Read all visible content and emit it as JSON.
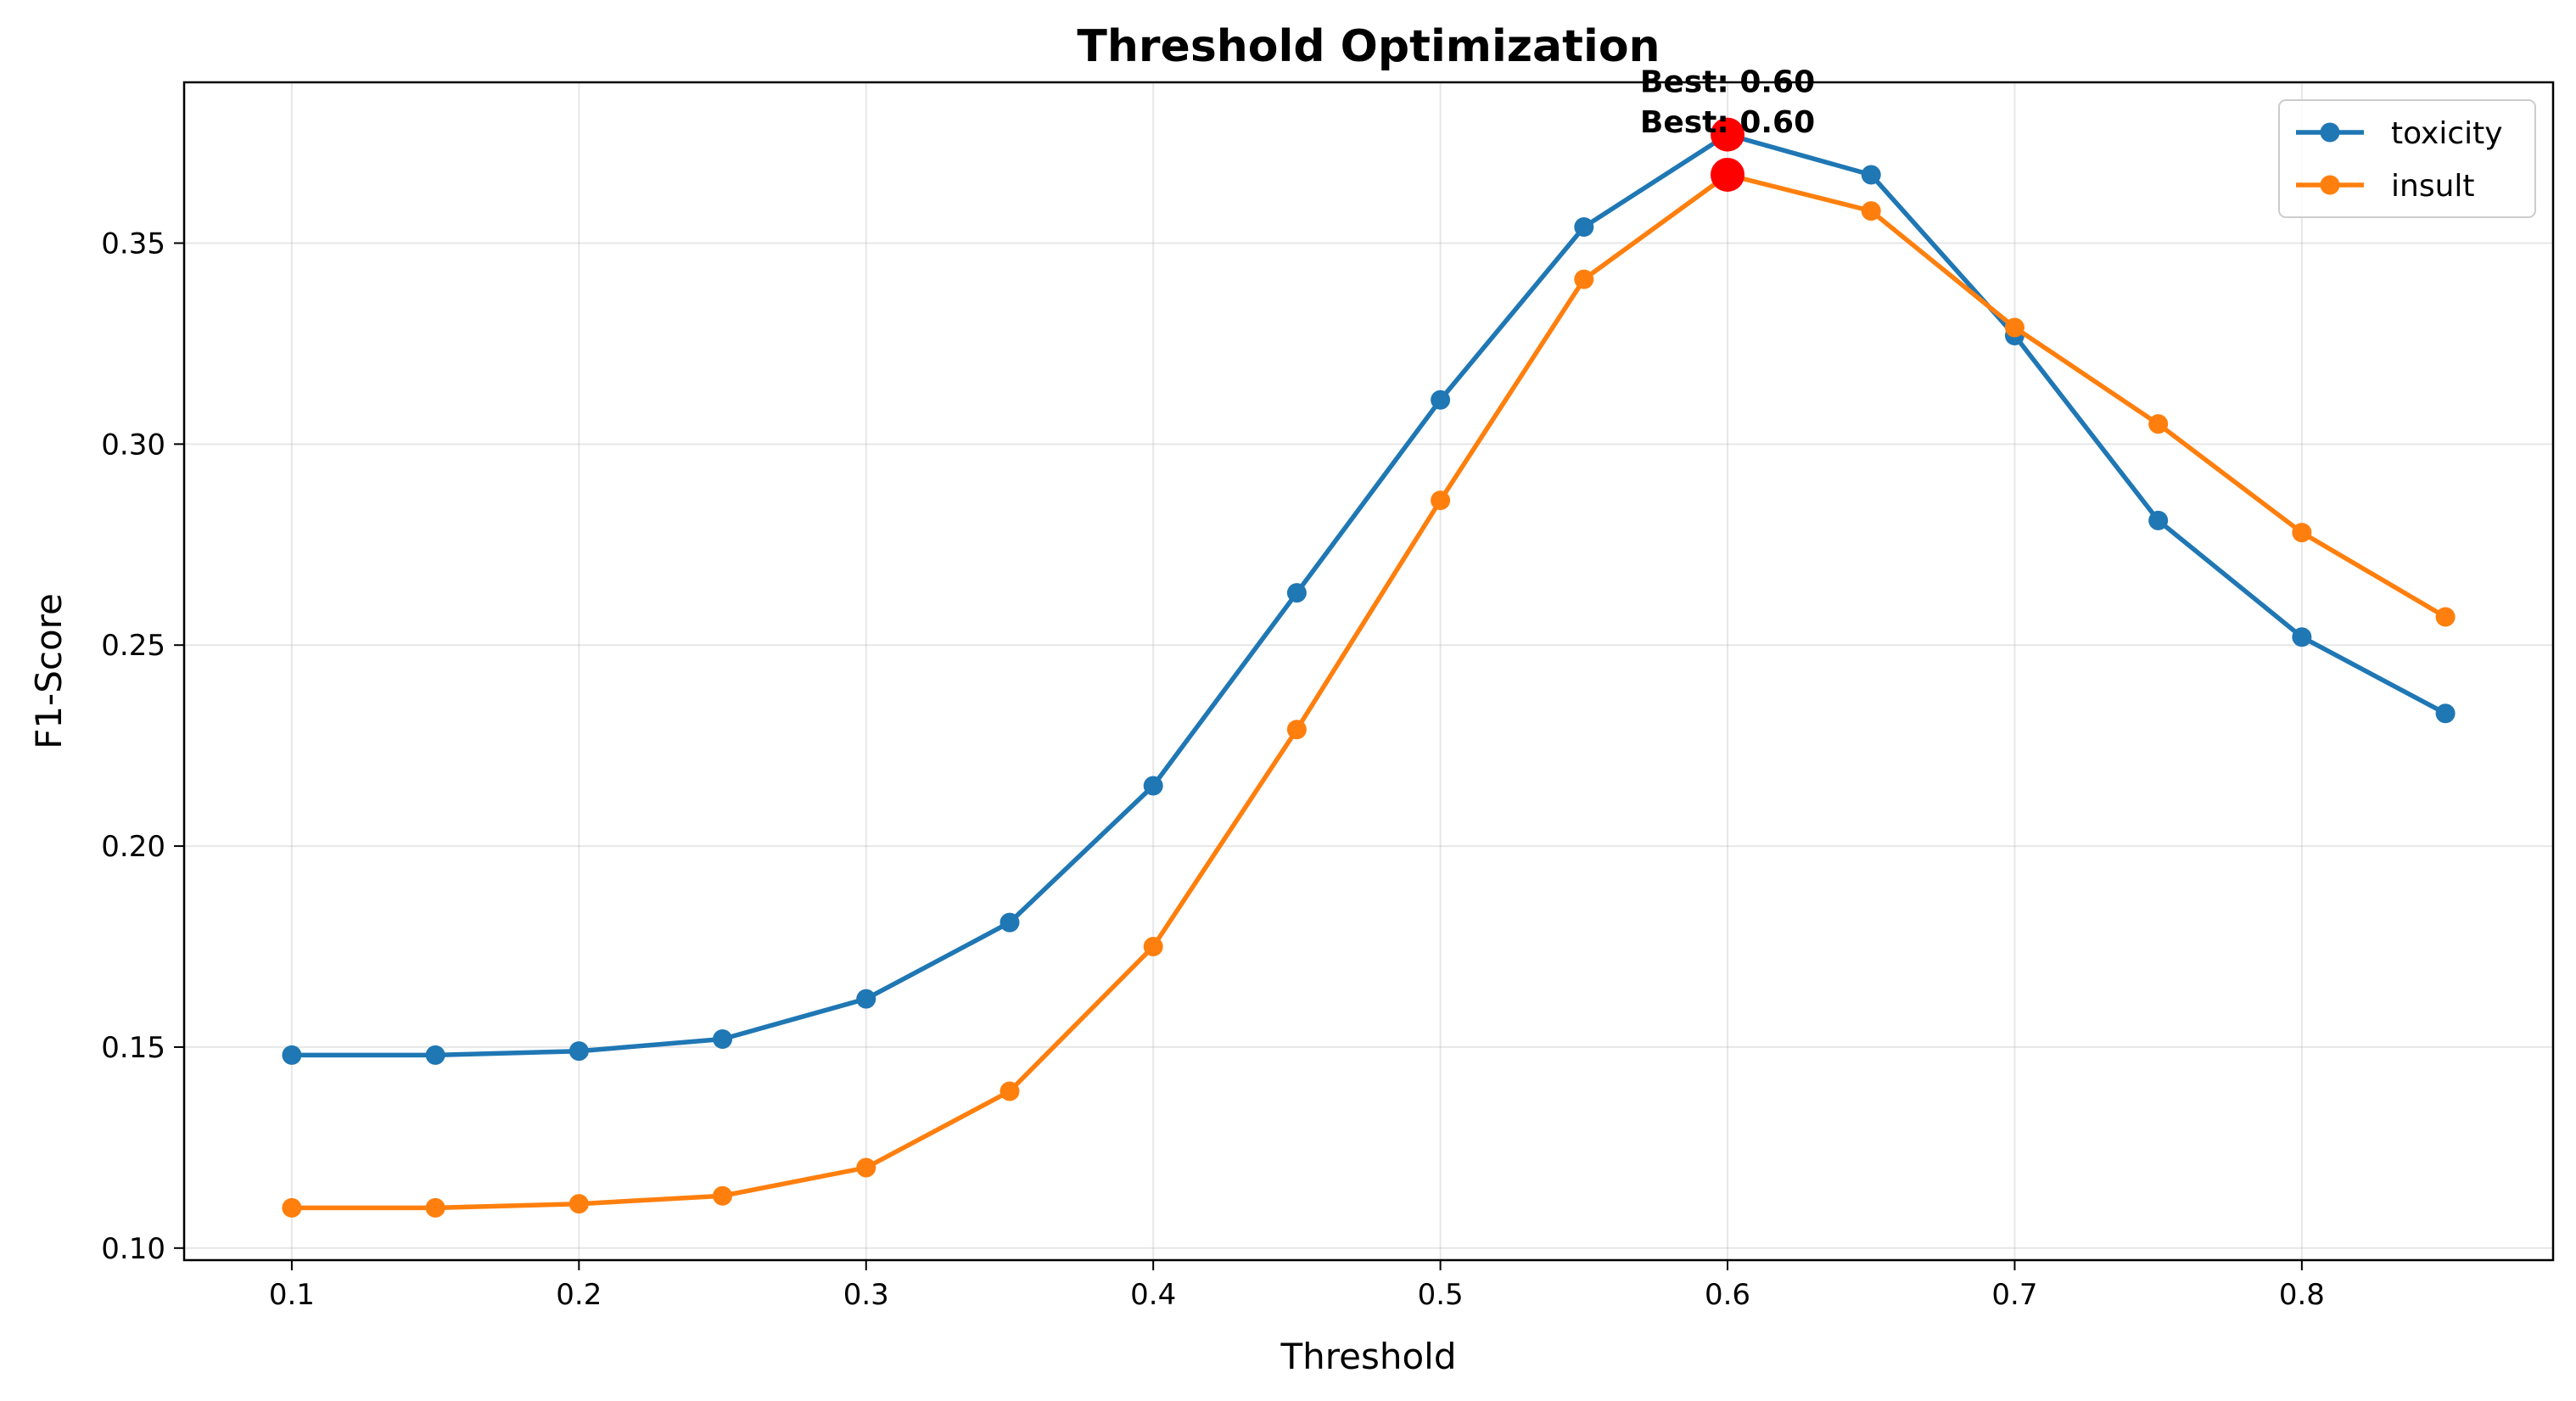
{
  "chart_data": {
    "type": "line",
    "title": "Threshold Optimization",
    "xlabel": "Threshold",
    "ylabel": "F1-Score",
    "x": [
      0.1,
      0.15,
      0.2,
      0.25,
      0.3,
      0.35,
      0.4,
      0.45,
      0.5,
      0.55,
      0.6,
      0.65,
      0.7,
      0.75,
      0.8,
      0.85
    ],
    "xlim": [
      0.0625,
      0.8875
    ],
    "ylim": [
      0.097,
      0.39
    ],
    "xticks": [
      "0.1",
      "0.2",
      "0.3",
      "0.4",
      "0.5",
      "0.6",
      "0.7",
      "0.8"
    ],
    "xtick_values": [
      0.1,
      0.2,
      0.3,
      0.4,
      0.5,
      0.6,
      0.7,
      0.8
    ],
    "yticks": [
      "0.10",
      "0.15",
      "0.20",
      "0.25",
      "0.30",
      "0.35"
    ],
    "ytick_values": [
      0.1,
      0.15,
      0.2,
      0.25,
      0.3,
      0.35
    ],
    "grid": true,
    "legend_position": "top-right",
    "series": [
      {
        "name": "toxicity",
        "color": "#1f77b4",
        "values": [
          0.148,
          0.148,
          0.149,
          0.152,
          0.162,
          0.181,
          0.215,
          0.263,
          0.311,
          0.354,
          0.377,
          0.367,
          0.327,
          0.281,
          0.252,
          0.233
        ]
      },
      {
        "name": "insult",
        "color": "#ff7f0e",
        "values": [
          0.11,
          0.11,
          0.111,
          0.113,
          0.12,
          0.139,
          0.175,
          0.229,
          0.286,
          0.341,
          0.367,
          0.358,
          0.329,
          0.305,
          0.278,
          0.257
        ]
      }
    ],
    "annotations": [
      {
        "text": "Best: 0.60",
        "x": 0.6,
        "y": 0.377,
        "marker_color": "#ff0000"
      },
      {
        "text": "Best: 0.60",
        "x": 0.6,
        "y": 0.367,
        "marker_color": "#ff0000"
      }
    ]
  }
}
